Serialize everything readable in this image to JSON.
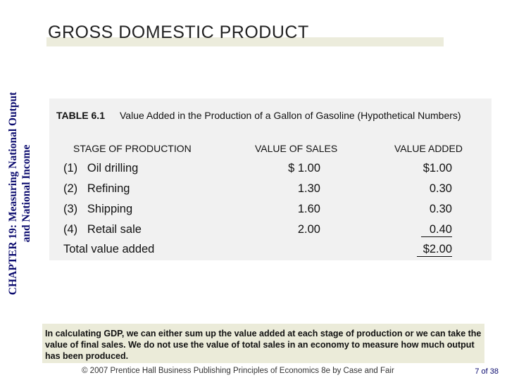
{
  "side_title": {
    "line1": "CHAPTER 19: Measuring National Output",
    "line2": "and National Income"
  },
  "title": "GROSS DOMESTIC PRODUCT",
  "table": {
    "number": "TABLE 6.1",
    "caption": "Value Added in the Production of a Gallon of Gasoline (Hypothetical Numbers)",
    "headers": {
      "stage": "STAGE OF PRODUCTION",
      "sales": "VALUE OF SALES",
      "added": "VALUE ADDED"
    },
    "rows": [
      {
        "stage": "(1)   Oil drilling",
        "sales": "$ 1.00",
        "added": "$1.00"
      },
      {
        "stage": "(2)   Refining",
        "sales": "1.30",
        "added": "0.30"
      },
      {
        "stage": "(3)   Shipping",
        "sales": "1.60",
        "added": "0.30"
      },
      {
        "stage": "(4)   Retail sale",
        "sales": "2.00",
        "added": "0.40"
      }
    ],
    "total": {
      "label": "Total value added",
      "added": "$2.00"
    }
  },
  "note": "In calculating GDP, we can either sum up the value added at each stage of production or we can take the value of final sales.  We do not use the value of total sales in an economy to measure how much output has been produced.",
  "footer": {
    "credit": "© 2007 Prentice Hall Business Publishing   Principles of Economics 8e by Case and Fair",
    "page": "7 of 38"
  }
}
